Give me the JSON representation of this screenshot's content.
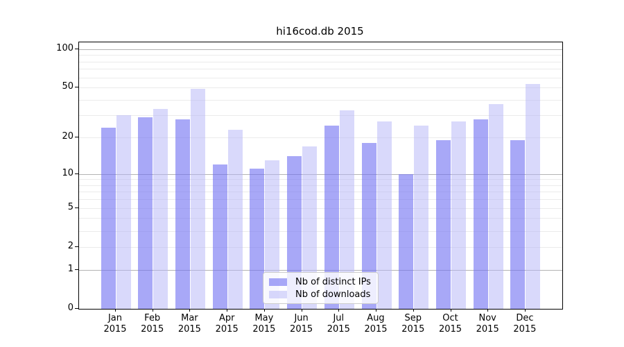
{
  "chart_data": {
    "type": "bar",
    "title": "hi16cod.db 2015",
    "categories": [
      "Jan",
      "Feb",
      "Mar",
      "Apr",
      "May",
      "Jun",
      "Jul",
      "Aug",
      "Sep",
      "Oct",
      "Nov",
      "Dec"
    ],
    "year_label": "2015",
    "series": [
      {
        "name": "Nb of distinct IPs",
        "color": "#6e6ef2",
        "opacity": 0.6,
        "values": [
          24,
          29,
          28,
          12,
          11,
          14,
          25,
          18,
          10,
          19,
          28,
          19
        ]
      },
      {
        "name": "Nb of downloads",
        "color": "#b4b4f8",
        "opacity": 0.5,
        "values": [
          30,
          34,
          49,
          23,
          13,
          17,
          33,
          27,
          25,
          27,
          37,
          53
        ]
      }
    ],
    "yscale": "log1p",
    "yticks": [
      0,
      1,
      2,
      5,
      10,
      20,
      50,
      100
    ],
    "ylim": [
      0,
      113
    ],
    "grid": {
      "minor_values": [
        2,
        3,
        4,
        5,
        6,
        7,
        8,
        9,
        20,
        30,
        40,
        50,
        60,
        70,
        80,
        90
      ],
      "major_values": [
        1,
        10,
        100
      ],
      "minor_color": "#ebebeb",
      "major_color": "#b3b3b3"
    },
    "legend_position": "inside-bottom-center",
    "axis_color": "#000000",
    "background_color": "#ffffff"
  }
}
